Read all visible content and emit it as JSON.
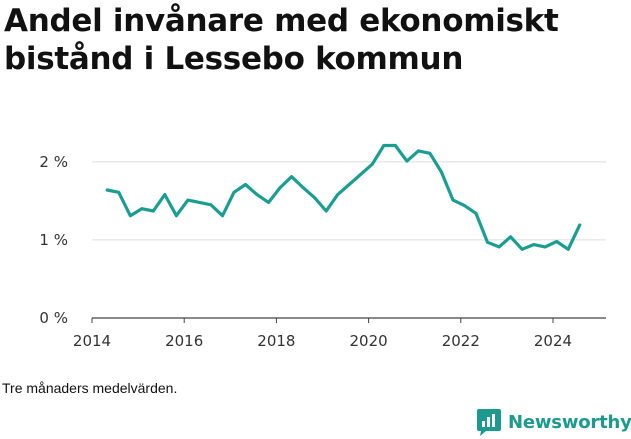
{
  "title": "Andel invånare med ekonomiskt bistånd i Lessebo kommun",
  "note": "Tre månaders medelvärden.",
  "brand": {
    "name": "Newsworthy",
    "icon": "newsworthy-logo-icon"
  },
  "colors": {
    "line": "#1a9e92",
    "grid": "#dddddd",
    "axis": "#444444",
    "brand": "#1d9a8e"
  },
  "chart_data": {
    "type": "line",
    "title": "Andel invånare med ekonomiskt bistånd i Lessebo kommun",
    "xlabel": "",
    "ylabel": "",
    "xlim": [
      2014,
      2025.15
    ],
    "ylim": [
      0,
      2.6
    ],
    "x_ticks": [
      2014,
      2016,
      2018,
      2020,
      2022,
      2024
    ],
    "y_ticks": [
      {
        "value": 0,
        "label": "0 %"
      },
      {
        "value": 1,
        "label": "1 %"
      },
      {
        "value": 2,
        "label": "2 %"
      }
    ],
    "grid": true,
    "series": [
      {
        "x": [
          2014.33,
          2014.58,
          2014.83,
          2015.08,
          2015.33,
          2015.58,
          2015.83,
          2016.08,
          2016.33,
          2016.58,
          2016.83,
          2017.08,
          2017.33,
          2017.58,
          2017.83,
          2018.08,
          2018.33,
          2018.58,
          2018.83,
          2019.08,
          2019.33,
          2019.58,
          2019.83,
          2020.08,
          2020.33,
          2020.58,
          2020.83,
          2021.08,
          2021.33,
          2021.58,
          2021.83,
          2022.08,
          2022.33,
          2022.58,
          2022.83,
          2023.08,
          2023.33,
          2023.58,
          2023.83,
          2024.08,
          2024.33,
          2024.58
        ],
        "values": [
          1.64,
          1.61,
          1.31,
          1.4,
          1.37,
          1.58,
          1.31,
          1.51,
          1.48,
          1.45,
          1.31,
          1.61,
          1.71,
          1.58,
          1.48,
          1.67,
          1.81,
          1.67,
          1.54,
          1.37,
          1.58,
          1.71,
          1.84,
          1.97,
          2.21,
          2.21,
          2.01,
          2.14,
          2.11,
          1.87,
          1.51,
          1.44,
          1.34,
          0.97,
          0.91,
          1.04,
          0.88,
          0.94,
          0.91,
          0.98,
          0.88,
          1.19
        ]
      }
    ]
  }
}
